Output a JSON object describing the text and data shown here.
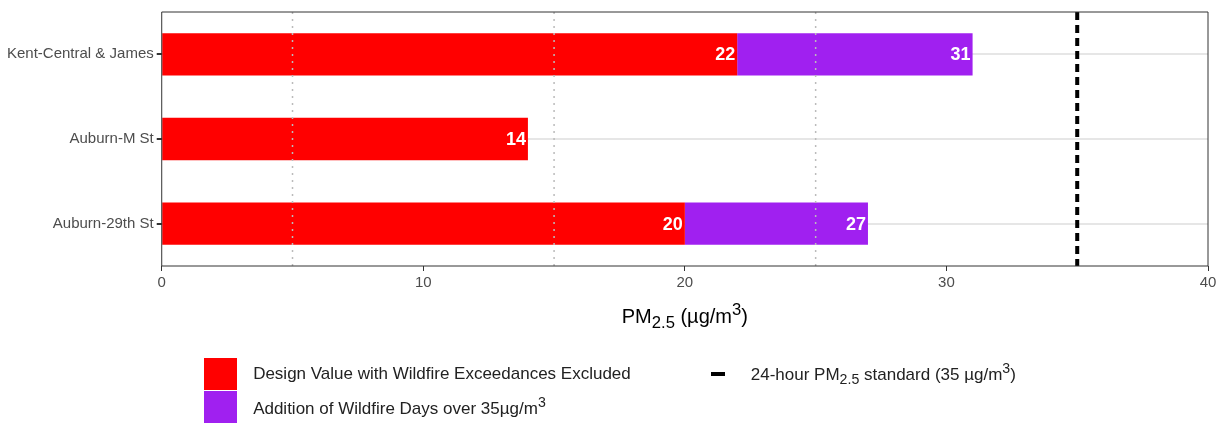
{
  "chart_data": {
    "type": "bar",
    "orientation": "horizontal",
    "stacked": true,
    "categories": [
      "Kent-Central & James",
      "Auburn-M St",
      "Auburn-29th St"
    ],
    "series": [
      {
        "name": "Design Value with Wildfire Exceedances Excluded",
        "color": "#ff0000",
        "values": [
          22,
          14,
          20
        ],
        "value_labels": [
          "22",
          "14",
          "20"
        ]
      },
      {
        "name": "Addition of Wildfire Days over 35µg/m$^{3}$",
        "color": "#a020f0",
        "values": [
          9,
          null,
          7
        ]
      }
    ],
    "totals": [
      "31",
      null,
      "27"
    ],
    "xlabel": "PM$_{2.5}$ (µg/m$^{3}$)",
    "xlim": [
      0,
      40
    ],
    "xticks": [
      0,
      10,
      20,
      30,
      40
    ],
    "grid": "y",
    "legend": "bottom",
    "ref_lines": [
      {
        "axis": "x",
        "value": 35,
        "label": "24-hour PM$_{2.5}$ standard (35 µg/m$^{3}$)",
        "color": "#000000",
        "line_style": "dashed"
      },
      {
        "axis": "x",
        "value": 5,
        "color": "#bbbbbb",
        "line_style": "dotted"
      },
      {
        "axis": "x",
        "value": 15,
        "color": "#bbbbbb",
        "line_style": "dotted"
      },
      {
        "axis": "x",
        "value": 25,
        "color": "#bbbbbb",
        "line_style": "dotted"
      }
    ]
  }
}
